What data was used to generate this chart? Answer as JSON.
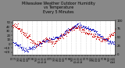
{
  "title": "Milwaukee Weather Outdoor Humidity\nvs Temperature\nEvery 5 Minutes",
  "title_fontsize": 3.5,
  "bg_color": "#888888",
  "plot_bg_color": "#ffffff",
  "red_color": "#cc0000",
  "blue_color": "#0000bb",
  "grid_color": "#bbbbbb",
  "grid_style": ":",
  "ylim_temp": [
    -25,
    55
  ],
  "ylim_hum": [
    0,
    100
  ],
  "temp_yticks": [
    -20,
    -10,
    0,
    10,
    20,
    30,
    40,
    50
  ],
  "hum_yticks": [
    0,
    25,
    50,
    75,
    100
  ],
  "n_points": 300,
  "seed": 7
}
